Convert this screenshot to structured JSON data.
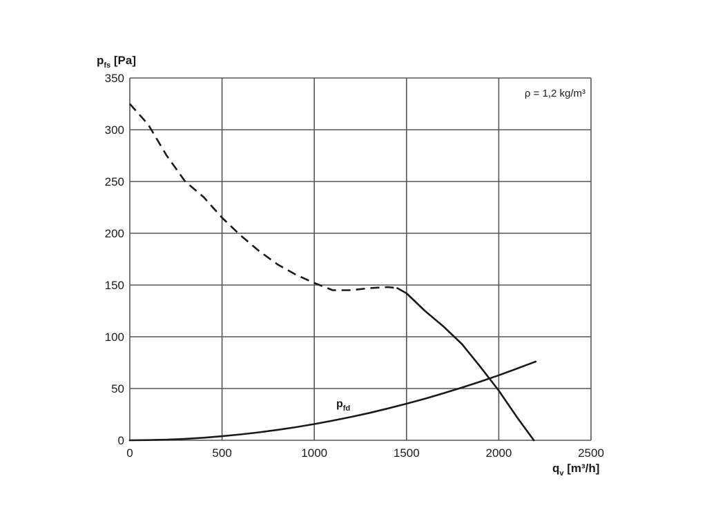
{
  "chart_data": {
    "type": "line",
    "title": "",
    "xlabel": {
      "main": "q",
      "sub": "v",
      "unit": " [m³/h]"
    },
    "ylabel": {
      "main": "p",
      "sub": "fs",
      "unit": " [Pa]"
    },
    "xlim": [
      0,
      2500
    ],
    "ylim": [
      0,
      350
    ],
    "xticks": [
      0,
      500,
      1000,
      1500,
      2000,
      2500
    ],
    "yticks": [
      0,
      50,
      100,
      150,
      200,
      250,
      300,
      350
    ],
    "grid": true,
    "annotation": "ρ = 1,2 kg/m³",
    "series": [
      {
        "segment": "unstable",
        "style": "dashed",
        "x": [
          0,
          100,
          200,
          300,
          400,
          500,
          600,
          700,
          800,
          900,
          1000,
          1100,
          1200,
          1300,
          1400,
          1450
        ],
        "y": [
          325,
          305,
          275,
          250,
          235,
          215,
          198,
          183,
          170,
          160,
          152,
          145,
          145,
          147,
          148,
          147
        ]
      },
      {
        "segment": "stable",
        "style": "solid",
        "x": [
          1450,
          1500,
          1600,
          1700,
          1800,
          1900,
          2000,
          2100,
          2190
        ],
        "y": [
          147,
          142,
          125,
          110,
          93,
          71,
          48,
          22,
          0
        ]
      },
      {
        "name": {
          "main": "p",
          "sub": "fd"
        },
        "style": "solid",
        "x": [
          0,
          100,
          200,
          300,
          400,
          500,
          600,
          700,
          800,
          900,
          1000,
          1100,
          1200,
          1300,
          1400,
          1500,
          1600,
          1700,
          1800,
          1900,
          2000,
          2100,
          2200
        ],
        "y": [
          0,
          0.2,
          0.6,
          1.4,
          2.5,
          3.9,
          5.7,
          7.7,
          10.1,
          12.7,
          15.7,
          19.0,
          22.6,
          26.5,
          30.8,
          35.3,
          40.2,
          45.4,
          50.9,
          56.7,
          62.8,
          69.3,
          76.0
        ]
      }
    ]
  }
}
